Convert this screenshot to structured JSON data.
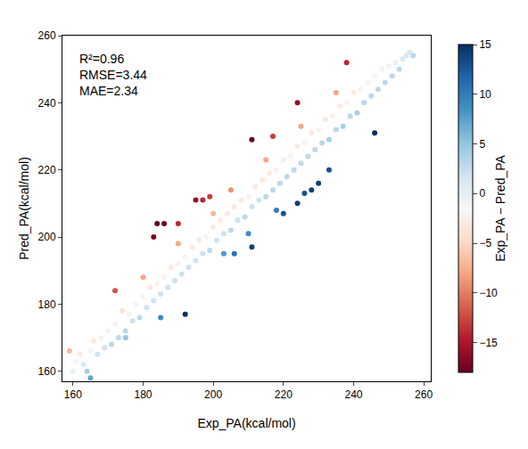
{
  "chart_data": {
    "type": "scatter",
    "x_label": "Exp_PA(kcal/mol)",
    "y_label": "Pred_PA(kcal/mol)",
    "annotations": [
      "R²=0.96",
      "RMSE=3.44",
      "MAE=2.34"
    ],
    "colorbar_title": "Exp_PA − Pred_PA",
    "x": [
      159,
      160,
      161,
      162,
      163,
      164,
      165,
      166,
      167,
      168,
      169,
      170,
      171,
      172,
      173,
      174,
      175,
      176,
      177,
      178,
      179,
      180,
      181,
      182,
      183,
      184,
      185,
      186,
      187,
      188,
      189,
      190,
      191,
      192,
      193,
      194,
      195,
      196,
      197,
      198,
      199,
      200,
      201,
      202,
      203,
      204,
      205,
      206,
      207,
      208,
      209,
      210,
      211,
      212,
      213,
      214,
      215,
      216,
      217,
      218,
      219,
      220,
      221,
      222,
      223,
      224,
      225,
      226,
      227,
      228,
      229,
      230,
      231,
      232,
      233,
      234,
      235,
      236,
      237,
      238,
      239,
      240,
      241,
      242,
      243,
      244,
      245,
      246,
      247,
      248,
      249,
      250,
      251,
      252,
      253,
      254,
      255,
      256,
      257,
      203,
      210,
      218,
      185,
      175,
      190,
      205,
      215,
      225,
      235,
      200,
      180,
      165,
      172,
      184,
      183,
      211,
      217,
      224,
      238,
      197,
      195,
      199,
      190,
      186,
      246,
      211,
      220,
      228,
      224,
      233,
      206,
      192,
      226,
      230
    ],
    "values": [
      166,
      160,
      163,
      165,
      162,
      160,
      166,
      169,
      165,
      170,
      167,
      172,
      168,
      174,
      170,
      178,
      172,
      177,
      175,
      180,
      176,
      182,
      179,
      185,
      181,
      186,
      183,
      188,
      185,
      191,
      187,
      192,
      189,
      194,
      191,
      197,
      193,
      199,
      195,
      200,
      196,
      203,
      199,
      205,
      201,
      207,
      202,
      209,
      205,
      211,
      206,
      212,
      209,
      215,
      211,
      217,
      212,
      219,
      214,
      220,
      216,
      223,
      218,
      224,
      220,
      227,
      222,
      228,
      224,
      231,
      226,
      232,
      228,
      235,
      229,
      236,
      232,
      239,
      233,
      240,
      236,
      243,
      237,
      244,
      240,
      246,
      242,
      248,
      244,
      250,
      246,
      251,
      248,
      252,
      250,
      253,
      254,
      255,
      254,
      195,
      201,
      208,
      176,
      170,
      198,
      214,
      223,
      233,
      243,
      207,
      188,
      158,
      184,
      204,
      200,
      229,
      230,
      240,
      252,
      211,
      211,
      212,
      204,
      204,
      231,
      197,
      207,
      214,
      210,
      220,
      195,
      177,
      213,
      216
    ],
    "differences": [
      -7,
      0,
      -2,
      -3,
      1,
      4,
      -1,
      -3,
      2,
      -2,
      2,
      -2,
      3,
      -2,
      3,
      -4,
      3,
      -1,
      2,
      -2,
      3,
      -2,
      2,
      -3,
      2,
      -2,
      2,
      -2,
      2,
      -3,
      2,
      -2,
      2,
      -2,
      2,
      -3,
      2,
      -3,
      2,
      -2,
      3,
      -3,
      2,
      -3,
      2,
      -3,
      3,
      -3,
      2,
      -3,
      3,
      -2,
      2,
      -3,
      2,
      -3,
      3,
      -3,
      3,
      -2,
      3,
      -3,
      3,
      -2,
      3,
      -3,
      3,
      -2,
      3,
      -3,
      3,
      -2,
      3,
      -3,
      4,
      -2,
      3,
      -3,
      4,
      -2,
      3,
      -3,
      4,
      -2,
      3,
      -2,
      3,
      -2,
      3,
      -2,
      3,
      -1,
      3,
      0,
      3,
      1,
      1,
      1,
      3,
      8,
      9,
      10,
      9,
      5,
      -8,
      -9,
      -8,
      -8,
      -8,
      -7,
      -8,
      7,
      -12,
      -20,
      -17,
      -18,
      -13,
      -16,
      -14,
      -14,
      -16,
      -13,
      -14,
      -18,
      15,
      14,
      13,
      14,
      14,
      13,
      11,
      15,
      13,
      14
    ],
    "xlim": [
      157,
      262
    ],
    "ylim": [
      157,
      260
    ],
    "xticks": [
      160,
      180,
      200,
      220,
      240,
      260
    ],
    "yticks": [
      160,
      180,
      200,
      220,
      240,
      260
    ],
    "colorbar_lim": [
      -18,
      15
    ],
    "colorbar_ticks": [
      -15,
      -10,
      -5,
      0,
      5,
      10,
      15
    ],
    "grid": false
  }
}
